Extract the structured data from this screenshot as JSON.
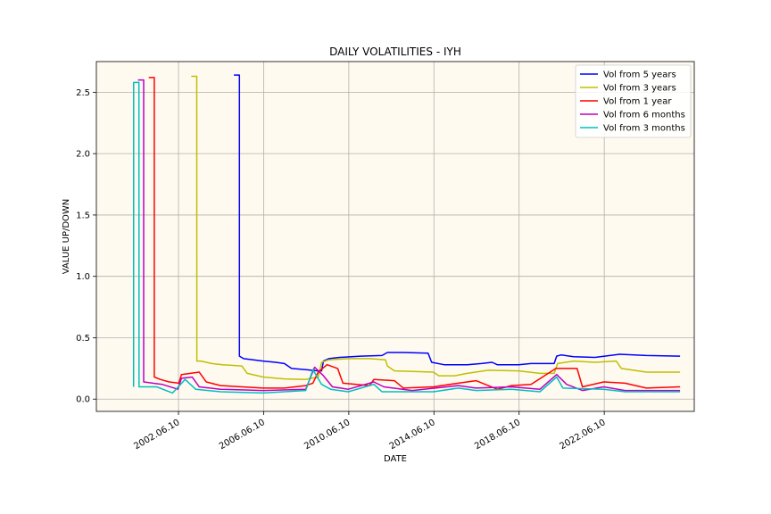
{
  "chart_data": {
    "type": "line",
    "title": "DAILY VOLATILITIES - IYH",
    "xlabel": "DATE",
    "ylabel": "VALUE UP/DOWN",
    "ylim": [
      -0.1,
      2.75
    ],
    "xlim": [
      "1998-08-01",
      "2026-09-01"
    ],
    "x_ticks": [
      "2002.06.10",
      "2006.06.10",
      "2010.06.10",
      "2014.06.10",
      "2018.06.10",
      "2022.06.10"
    ],
    "x_tick_dates": [
      "2002-06-10",
      "2006-06-10",
      "2010-06-10",
      "2014-06-10",
      "2018-06-10",
      "2022-06-10"
    ],
    "y_ticks": [
      "0.0",
      "0.5",
      "1.0",
      "1.5",
      "2.0",
      "2.5"
    ],
    "y_tick_values": [
      0.0,
      0.5,
      1.0,
      1.5,
      2.0,
      2.5
    ],
    "grid": true,
    "legend_position": "top-right",
    "background_color": "#fffaf0",
    "series": [
      {
        "name": "Vol from 5 years",
        "color": "#0000ff",
        "points": [
          [
            "2005-01-15",
            2.64
          ],
          [
            "2005-04-20",
            2.64
          ],
          [
            "2005-04-21",
            0.35
          ],
          [
            "2005-07-01",
            0.33
          ],
          [
            "2006-06-01",
            0.31
          ],
          [
            "2007-01-01",
            0.3
          ],
          [
            "2007-06-01",
            0.29
          ],
          [
            "2007-10-01",
            0.25
          ],
          [
            "2008-06-01",
            0.24
          ],
          [
            "2009-01-01",
            0.23
          ],
          [
            "2009-03-01",
            0.23
          ],
          [
            "2009-04-01",
            0.31
          ],
          [
            "2009-07-01",
            0.33
          ],
          [
            "2010-01-01",
            0.34
          ],
          [
            "2011-01-01",
            0.35
          ],
          [
            "2012-01-01",
            0.355
          ],
          [
            "2012-04-01",
            0.38
          ],
          [
            "2013-01-01",
            0.38
          ],
          [
            "2014-03-01",
            0.375
          ],
          [
            "2014-05-01",
            0.3
          ],
          [
            "2014-12-01",
            0.28
          ],
          [
            "2016-01-01",
            0.28
          ],
          [
            "2016-09-01",
            0.29
          ],
          [
            "2017-03-01",
            0.3
          ],
          [
            "2017-06-01",
            0.28
          ],
          [
            "2018-06-01",
            0.28
          ],
          [
            "2019-01-01",
            0.29
          ],
          [
            "2020-02-01",
            0.29
          ],
          [
            "2020-03-15",
            0.35
          ],
          [
            "2020-06-01",
            0.36
          ],
          [
            "2021-01-01",
            0.345
          ],
          [
            "2022-01-01",
            0.34
          ],
          [
            "2023-03-01",
            0.365
          ],
          [
            "2024-06-01",
            0.355
          ],
          [
            "2026-01-01",
            0.35
          ]
        ]
      },
      {
        "name": "Vol from 3 years",
        "color": "#bfbf00",
        "points": [
          [
            "2003-01-15",
            2.63
          ],
          [
            "2003-04-20",
            2.63
          ],
          [
            "2003-04-21",
            0.31
          ],
          [
            "2003-07-01",
            0.31
          ],
          [
            "2004-01-01",
            0.29
          ],
          [
            "2004-07-01",
            0.28
          ],
          [
            "2005-06-01",
            0.27
          ],
          [
            "2005-09-01",
            0.21
          ],
          [
            "2006-06-01",
            0.18
          ],
          [
            "2007-06-01",
            0.165
          ],
          [
            "2008-06-01",
            0.16
          ],
          [
            "2009-01-01",
            0.18
          ],
          [
            "2009-03-01",
            0.3
          ],
          [
            "2009-07-01",
            0.32
          ],
          [
            "2010-06-01",
            0.33
          ],
          [
            "2011-06-01",
            0.33
          ],
          [
            "2012-03-01",
            0.32
          ],
          [
            "2012-04-01",
            0.27
          ],
          [
            "2012-08-01",
            0.23
          ],
          [
            "2013-06-01",
            0.225
          ],
          [
            "2014-06-01",
            0.22
          ],
          [
            "2014-09-01",
            0.19
          ],
          [
            "2015-06-01",
            0.19
          ],
          [
            "2016-01-01",
            0.21
          ],
          [
            "2017-01-01",
            0.235
          ],
          [
            "2018-06-01",
            0.23
          ],
          [
            "2019-06-01",
            0.21
          ],
          [
            "2020-02-01",
            0.21
          ],
          [
            "2020-04-01",
            0.29
          ],
          [
            "2021-01-01",
            0.31
          ],
          [
            "2022-01-01",
            0.3
          ],
          [
            "2023-01-01",
            0.31
          ],
          [
            "2023-04-01",
            0.25
          ],
          [
            "2024-06-01",
            0.22
          ],
          [
            "2026-01-01",
            0.22
          ]
        ]
      },
      {
        "name": "Vol from 1 year",
        "color": "#ff0000",
        "points": [
          [
            "2001-01-15",
            2.62
          ],
          [
            "2001-04-20",
            2.62
          ],
          [
            "2001-04-21",
            0.18
          ],
          [
            "2001-08-01",
            0.16
          ],
          [
            "2002-01-01",
            0.14
          ],
          [
            "2002-06-15",
            0.13
          ],
          [
            "2002-08-01",
            0.2
          ],
          [
            "2003-06-01",
            0.22
          ],
          [
            "2003-10-01",
            0.14
          ],
          [
            "2004-06-01",
            0.11
          ],
          [
            "2005-06-01",
            0.1
          ],
          [
            "2006-06-01",
            0.09
          ],
          [
            "2007-06-01",
            0.09
          ],
          [
            "2008-06-01",
            0.11
          ],
          [
            "2008-10-01",
            0.13
          ],
          [
            "2009-01-01",
            0.22
          ],
          [
            "2009-06-01",
            0.28
          ],
          [
            "2009-12-01",
            0.25
          ],
          [
            "2010-03-01",
            0.13
          ],
          [
            "2011-06-01",
            0.11
          ],
          [
            "2011-08-15",
            0.16
          ],
          [
            "2012-08-01",
            0.15
          ],
          [
            "2013-01-01",
            0.09
          ],
          [
            "2014-06-01",
            0.1
          ],
          [
            "2015-08-01",
            0.13
          ],
          [
            "2016-06-01",
            0.15
          ],
          [
            "2017-06-01",
            0.08
          ],
          [
            "2018-02-01",
            0.11
          ],
          [
            "2019-01-01",
            0.12
          ],
          [
            "2020-03-01",
            0.25
          ],
          [
            "2021-03-01",
            0.25
          ],
          [
            "2021-06-01",
            0.1
          ],
          [
            "2022-06-01",
            0.14
          ],
          [
            "2023-06-01",
            0.13
          ],
          [
            "2024-06-01",
            0.09
          ],
          [
            "2026-01-01",
            0.1
          ]
        ]
      },
      {
        "name": "Vol from 6 months",
        "color": "#bf00bf",
        "points": [
          [
            "2000-07-15",
            2.6
          ],
          [
            "2000-10-20",
            2.6
          ],
          [
            "2000-10-21",
            0.14
          ],
          [
            "2001-09-01",
            0.12
          ],
          [
            "2002-06-01",
            0.08
          ],
          [
            "2002-08-01",
            0.17
          ],
          [
            "2003-02-01",
            0.18
          ],
          [
            "2003-06-01",
            0.1
          ],
          [
            "2004-06-01",
            0.08
          ],
          [
            "2006-06-01",
            0.07
          ],
          [
            "2008-06-01",
            0.08
          ],
          [
            "2008-11-01",
            0.26
          ],
          [
            "2009-04-01",
            0.19
          ],
          [
            "2009-09-01",
            0.1
          ],
          [
            "2010-06-01",
            0.08
          ],
          [
            "2011-08-15",
            0.14
          ],
          [
            "2012-02-01",
            0.1
          ],
          [
            "2013-06-01",
            0.07
          ],
          [
            "2015-08-01",
            0.11
          ],
          [
            "2016-06-01",
            0.09
          ],
          [
            "2018-02-01",
            0.1
          ],
          [
            "2019-06-01",
            0.08
          ],
          [
            "2020-03-15",
            0.2
          ],
          [
            "2020-09-01",
            0.12
          ],
          [
            "2021-06-01",
            0.07
          ],
          [
            "2022-06-01",
            0.1
          ],
          [
            "2023-06-01",
            0.07
          ],
          [
            "2026-01-01",
            0.07
          ]
        ]
      },
      {
        "name": "Vol from 3 months",
        "color": "#00bfbf",
        "points": [
          [
            "2000-05-01",
            0.1
          ],
          [
            "2000-05-02",
            2.58
          ],
          [
            "2000-08-01",
            2.58
          ],
          [
            "2000-08-02",
            0.1
          ],
          [
            "2001-06-01",
            0.1
          ],
          [
            "2002-03-01",
            0.05
          ],
          [
            "2002-10-01",
            0.16
          ],
          [
            "2003-04-01",
            0.08
          ],
          [
            "2004-06-01",
            0.06
          ],
          [
            "2006-06-01",
            0.05
          ],
          [
            "2008-06-01",
            0.07
          ],
          [
            "2008-10-01",
            0.24
          ],
          [
            "2009-03-01",
            0.12
          ],
          [
            "2009-08-01",
            0.08
          ],
          [
            "2010-06-01",
            0.06
          ],
          [
            "2011-08-15",
            0.12
          ],
          [
            "2012-01-01",
            0.06
          ],
          [
            "2014-06-01",
            0.06
          ],
          [
            "2015-08-01",
            0.09
          ],
          [
            "2016-06-01",
            0.07
          ],
          [
            "2018-02-01",
            0.08
          ],
          [
            "2019-06-01",
            0.06
          ],
          [
            "2020-03-15",
            0.18
          ],
          [
            "2020-07-01",
            0.09
          ],
          [
            "2022-06-01",
            0.08
          ],
          [
            "2023-06-01",
            0.06
          ],
          [
            "2026-01-01",
            0.06
          ]
        ]
      }
    ]
  }
}
